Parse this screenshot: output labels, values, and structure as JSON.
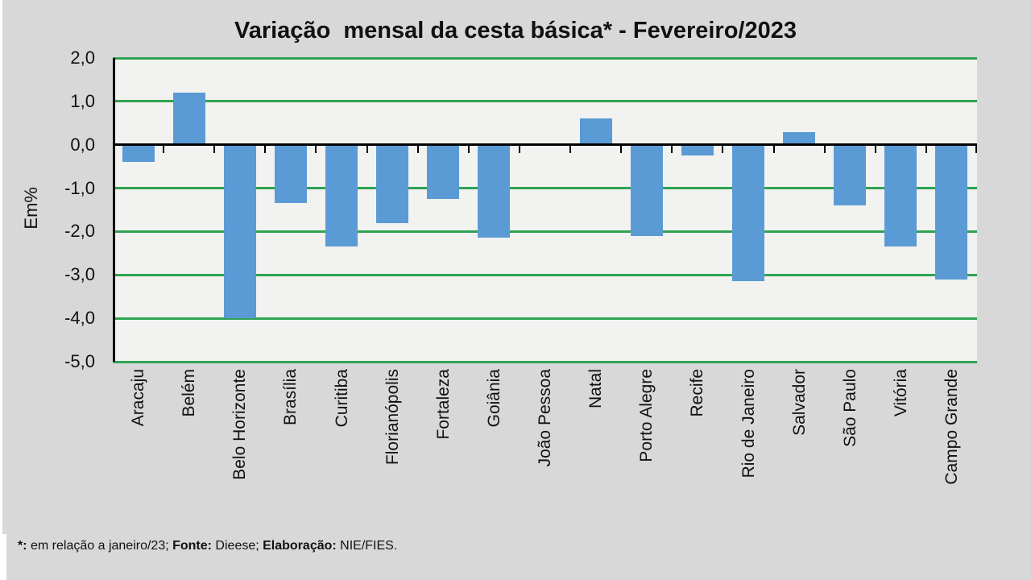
{
  "title": "Variação  mensal da cesta básica* - Fevereiro/2023",
  "colors": {
    "background": "#D8D8D8",
    "plot_background": "#F2F2F0",
    "bar": "#5B9BD5",
    "gridline": "#2EA352",
    "axis": "#000000"
  },
  "footnote": {
    "note_label": "*:",
    "note_text": " em relação a janeiro/23; ",
    "source_label": "Fonte:",
    "source_text": " Dieese; ",
    "elaboration_label": "Elaboração:",
    "elaboration_text": " NIE/FIES."
  },
  "chart_data": {
    "type": "bar",
    "title": "Variação mensal da cesta básica* - Fevereiro/2023",
    "xlabel": "",
    "ylabel": "Em%",
    "ylim": [
      -5.0,
      2.0
    ],
    "ytick_step": 1.0,
    "ytick_labels": [
      "2,0",
      "1,0",
      "0,0",
      "-1,0",
      "-2,0",
      "-3,0",
      "-4,0",
      "-5,0"
    ],
    "grid": true,
    "legend": false,
    "categories": [
      "Aracaju",
      "Belém",
      "Belo Horizonte",
      "Brasília",
      "Curitiba",
      "Florianópolis",
      "Fortaleza",
      "Goiânia",
      "João Pessoa",
      "Natal",
      "Porto Alegre",
      "Recife",
      "Rio de Janeiro",
      "Salvador",
      "São Paulo",
      "Vitória",
      "Campo Grande"
    ],
    "values": [
      -0.4,
      1.2,
      -4.0,
      -1.35,
      -2.35,
      -1.8,
      -1.25,
      -2.15,
      0.0,
      0.6,
      -2.1,
      -0.25,
      -3.15,
      0.3,
      -1.4,
      -2.35,
      -3.1
    ]
  }
}
